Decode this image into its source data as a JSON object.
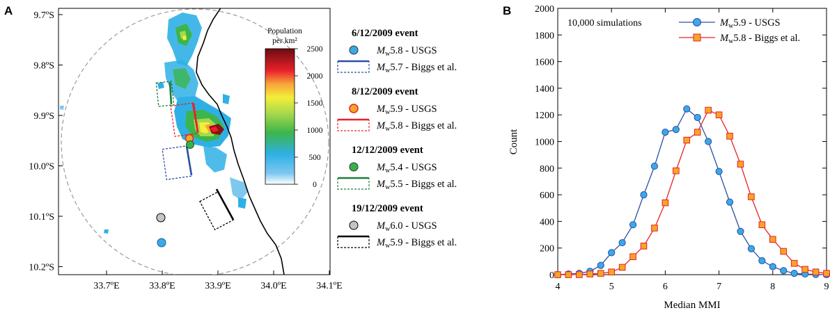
{
  "panel_a": {
    "label": "A",
    "y_ticks": [
      "9.7ºS",
      "9.8ºS",
      "9.9ºS",
      "10.0ºS",
      "10.1ºS",
      "10.2ºS"
    ],
    "x_ticks": [
      "33.7ºE",
      "33.8ºE",
      "33.9ºE",
      "34.0ºE",
      "34.1ºE"
    ],
    "colorbar": {
      "title_line1": "Population",
      "title_line2": "per km²",
      "ticks": [
        "2500",
        "2000",
        "1500",
        "1000",
        "500",
        "0"
      ]
    },
    "legend": [
      {
        "title": "6/12/2009 event",
        "usgs": {
          "mag": "5.8",
          "suffix": " - USGS"
        },
        "biggs": {
          "mag": "5.7",
          "suffix": " - Biggs et al."
        },
        "marker_color": "#3aa9e8",
        "line_color": "#2b4fa3"
      },
      {
        "title": "8/12/2009 event",
        "usgs": {
          "mag": "5.9",
          "suffix": " - USGS"
        },
        "biggs": {
          "mag": "5.8",
          "suffix": " - Biggs et al."
        },
        "marker_color": "#f5a623",
        "line_color": "#e8202a"
      },
      {
        "title": "12/12/2009 event",
        "usgs": {
          "mag": "5.4",
          "suffix": " - USGS"
        },
        "biggs": {
          "mag": "5.5",
          "suffix": " - Biggs et al."
        },
        "marker_color": "#35b24a",
        "line_color": "#1e7d3a"
      },
      {
        "title": "19/12/2009 event",
        "usgs": {
          "mag": "6.0",
          "suffix": " - USGS"
        },
        "biggs": {
          "mag": "5.9",
          "suffix": " - Biggs et al."
        },
        "marker_color": "#c4c4c4",
        "line_color": "#000000"
      }
    ],
    "mw_prefix": "M",
    "mw_sub": "w"
  },
  "chart_data": {
    "type": "line",
    "panel_label": "B",
    "annotation": "10,000 simulations",
    "xlabel": "Median MMI",
    "ylabel": "Count",
    "xlim": [
      4,
      9
    ],
    "ylim": [
      0,
      2000
    ],
    "x_ticks": [
      4,
      5,
      6,
      7,
      8,
      9
    ],
    "y_ticks": [
      0,
      200,
      400,
      600,
      800,
      1000,
      1200,
      1400,
      1600,
      1800,
      2000
    ],
    "legend_position": "top-right",
    "series": [
      {
        "name_mag": "5.9",
        "name_suffix": " - USGS",
        "color": "#2b4fa3",
        "marker": "circle",
        "marker_fill": "#3aa9e8",
        "x": [
          4.0,
          4.2,
          4.4,
          4.6,
          4.8,
          5.0,
          5.2,
          5.4,
          5.6,
          5.8,
          6.0,
          6.2,
          6.4,
          6.6,
          6.8,
          7.0,
          7.2,
          7.4,
          7.6,
          7.8,
          8.0,
          8.2,
          8.4,
          8.6,
          8.8,
          9.0
        ],
        "values": [
          0,
          5,
          10,
          25,
          70,
          165,
          240,
          375,
          600,
          815,
          1070,
          1090,
          1245,
          1180,
          1000,
          775,
          545,
          325,
          195,
          105,
          60,
          30,
          10,
          5,
          2,
          0
        ]
      },
      {
        "name_mag": "5.8",
        "name_suffix": " - Biggs et al.",
        "color": "#e8202a",
        "marker": "square",
        "marker_fill": "#f5a623",
        "x": [
          4.0,
          4.2,
          4.4,
          4.6,
          4.8,
          5.0,
          5.2,
          5.4,
          5.6,
          5.8,
          6.0,
          6.2,
          6.4,
          6.6,
          6.8,
          7.0,
          7.2,
          7.4,
          7.6,
          7.8,
          8.0,
          8.2,
          8.4,
          8.6,
          8.8,
          9.0
        ],
        "values": [
          0,
          0,
          0,
          5,
          10,
          20,
          55,
          135,
          215,
          350,
          540,
          780,
          1010,
          1070,
          1235,
          1200,
          1040,
          830,
          585,
          375,
          265,
          175,
          85,
          40,
          20,
          10
        ]
      }
    ]
  }
}
